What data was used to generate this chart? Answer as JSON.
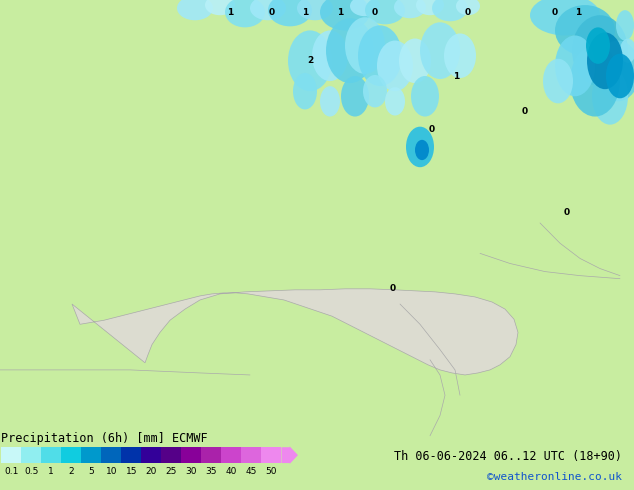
{
  "title": "Precipitation (6h) [mm] ECMWF",
  "date_label": "Th 06-06-2024 06..12 UTC (18+90)",
  "credit": "©weatheronline.co.uk",
  "bg_color": "#c8eda0",
  "land_green": "#c8eda0",
  "land_gray": "#dcdcd0",
  "sea_med": "#ccdde8",
  "border_color": "#aaaaaa",
  "precip_colors": [
    "#b0eef8",
    "#70ddf0",
    "#30cce8",
    "#00aacc",
    "#0088bb",
    "#0055aa"
  ],
  "colorbar_values": [
    0.1,
    0.5,
    1,
    2,
    5,
    10,
    15,
    20,
    25,
    30,
    35,
    40,
    45,
    50
  ],
  "colorbar_colors": [
    "#c8f8f8",
    "#90eef0",
    "#50dde8",
    "#10cce0",
    "#0099cc",
    "#0066bb",
    "#0033aa",
    "#330099",
    "#550088",
    "#880099",
    "#aa22aa",
    "#cc44cc",
    "#dd66dd",
    "#ee88ee"
  ],
  "figsize": [
    6.34,
    4.9
  ],
  "dpi": 100
}
